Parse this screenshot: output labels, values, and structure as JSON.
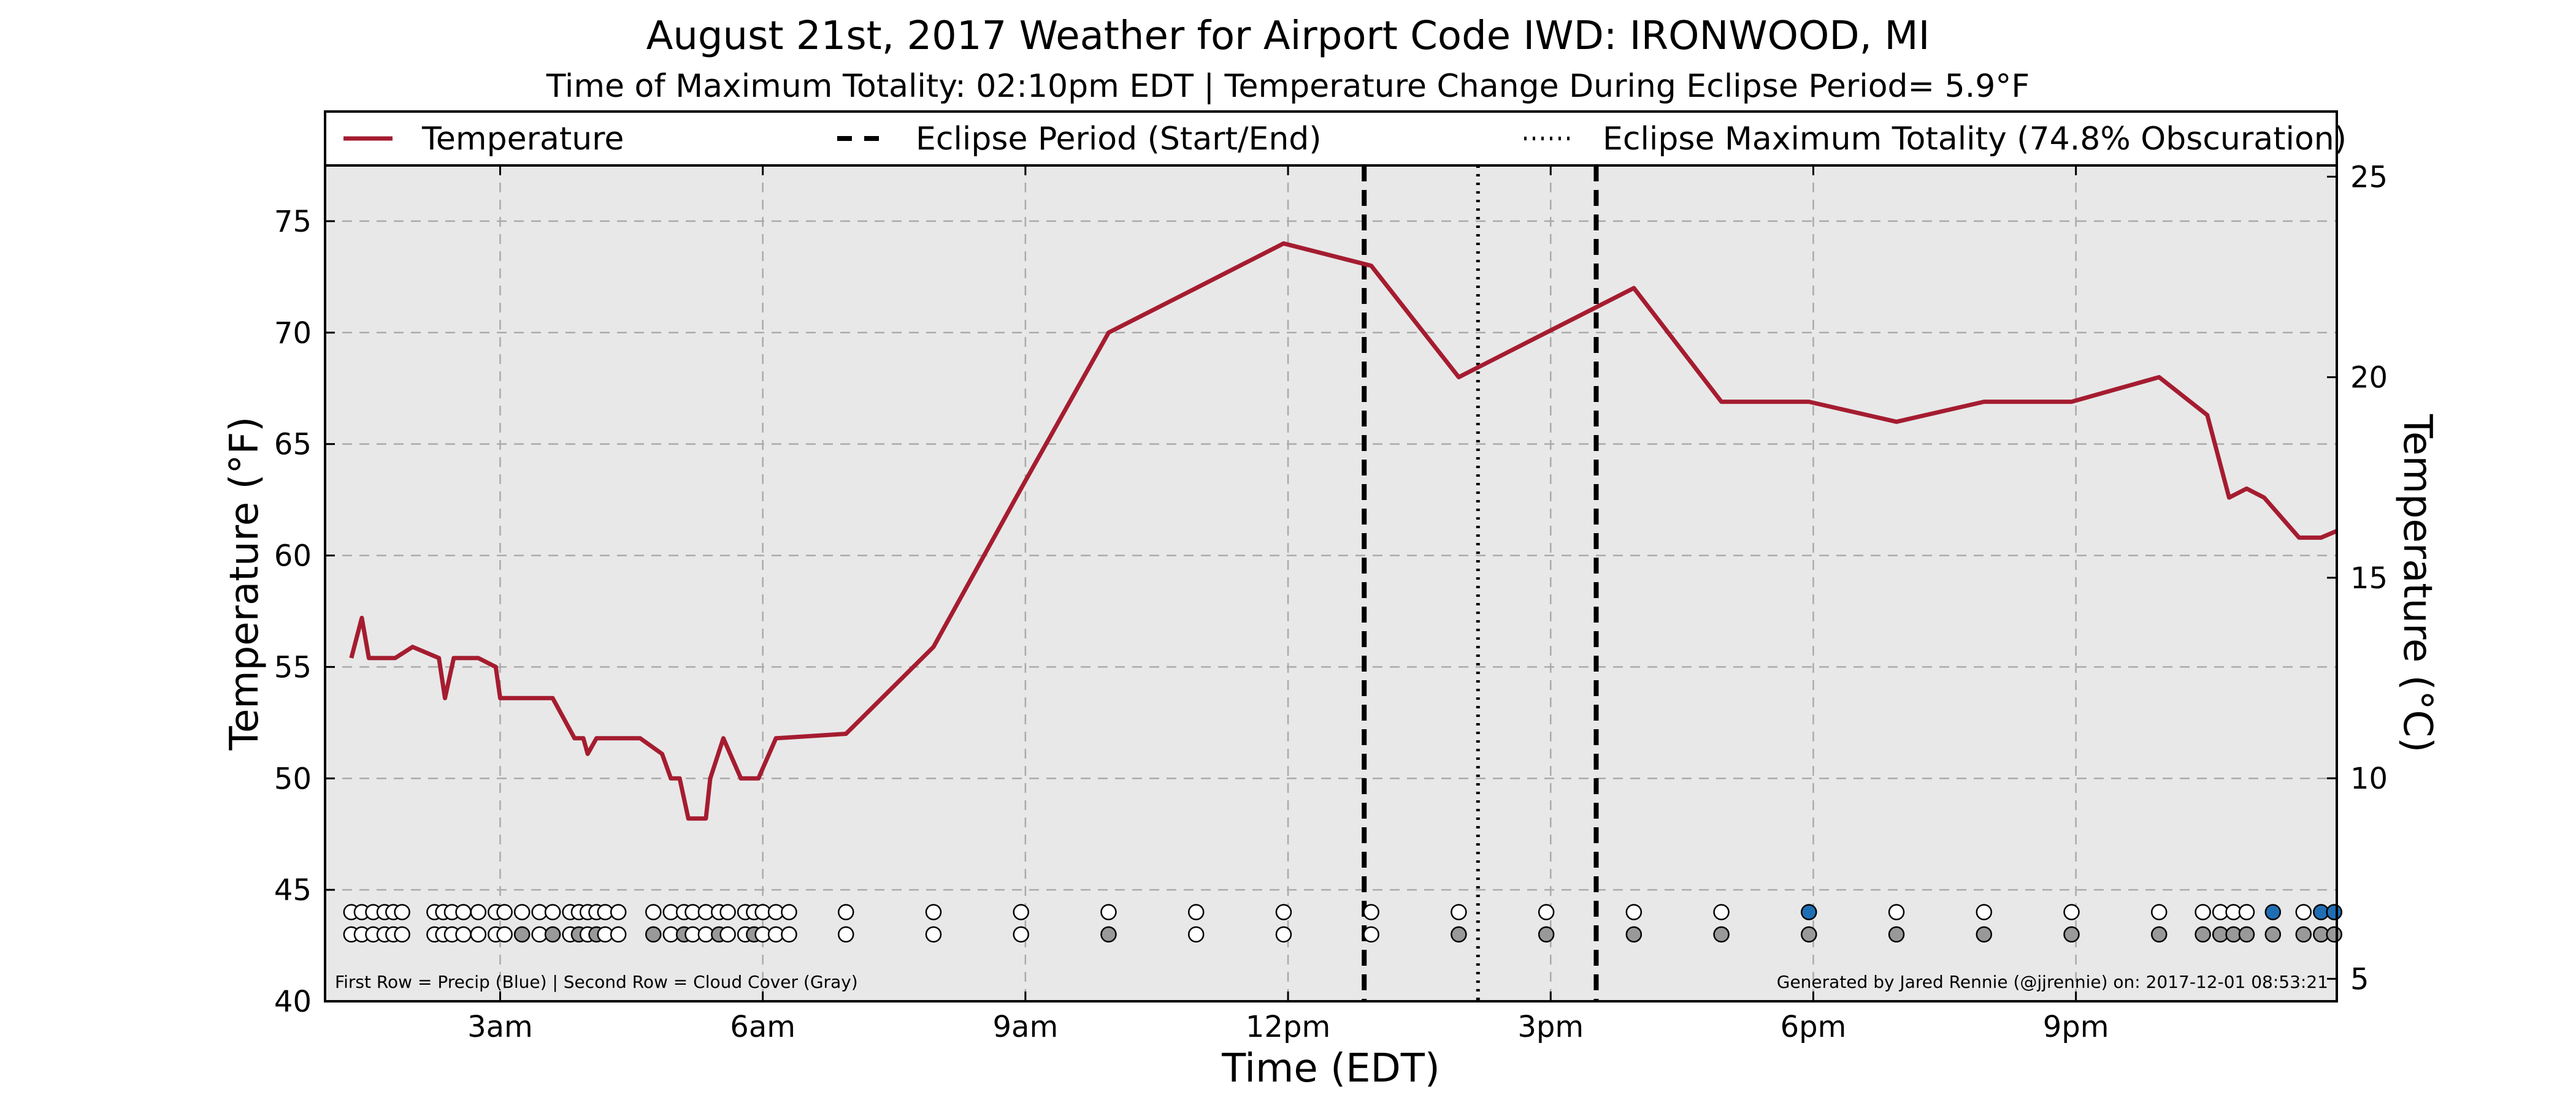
{
  "chart_data": {
    "type": "line",
    "title": "August 21st, 2017 Weather for Airport Code IWD: IRONWOOD, MI",
    "subtitle": "Time of Maximum Totality: 02:10pm EDT | Temperature Change During Eclipse Period= 5.9°F",
    "xlabel": "Time (EDT)",
    "ylabel": "Temperature (°F)",
    "y2label": "Temperature (°C)",
    "xlim": [
      1.0,
      23.98
    ],
    "ylim": [
      40,
      77.5
    ],
    "y2lim": [
      4.44,
      25.28
    ],
    "grid": true,
    "legend_position": "top",
    "x_ticks": [
      {
        "value": 3,
        "label": "3am"
      },
      {
        "value": 6,
        "label": "6am"
      },
      {
        "value": 9,
        "label": "9am"
      },
      {
        "value": 12,
        "label": "12pm"
      },
      {
        "value": 15,
        "label": "3pm"
      },
      {
        "value": 18,
        "label": "6pm"
      },
      {
        "value": 21,
        "label": "9pm"
      }
    ],
    "y_ticks": [
      40,
      45,
      50,
      55,
      60,
      65,
      70,
      75
    ],
    "y2_ticks": [
      5,
      10,
      15,
      20,
      25
    ],
    "legend": [
      {
        "label": "Temperature",
        "style": "solid"
      },
      {
        "label": "Eclipse Period (Start/End)",
        "style": "dashed"
      },
      {
        "label": "Eclipse Maximum Totality (74.8% Obscuration)",
        "style": "dotted"
      }
    ],
    "series": [
      {
        "name": "Temperature",
        "color": "#a51c30",
        "points": [
          [
            1.3,
            55.4
          ],
          [
            1.42,
            57.2
          ],
          [
            1.5,
            55.4
          ],
          [
            1.8,
            55.4
          ],
          [
            2.0,
            55.9
          ],
          [
            2.3,
            55.4
          ],
          [
            2.37,
            53.6
          ],
          [
            2.47,
            55.4
          ],
          [
            2.75,
            55.4
          ],
          [
            2.95,
            55.0
          ],
          [
            3.0,
            53.6
          ],
          [
            3.6,
            53.6
          ],
          [
            3.85,
            51.8
          ],
          [
            3.95,
            51.8
          ],
          [
            4.0,
            51.1
          ],
          [
            4.1,
            51.8
          ],
          [
            4.6,
            51.8
          ],
          [
            4.85,
            51.1
          ],
          [
            4.95,
            50.0
          ],
          [
            5.05,
            50.0
          ],
          [
            5.15,
            48.2
          ],
          [
            5.35,
            48.2
          ],
          [
            5.4,
            50.0
          ],
          [
            5.55,
            51.8
          ],
          [
            5.75,
            50.0
          ],
          [
            5.95,
            50.0
          ],
          [
            6.15,
            51.8
          ],
          [
            6.95,
            52.0
          ],
          [
            7.95,
            55.9
          ],
          [
            8.95,
            63.0
          ],
          [
            9.95,
            70.0
          ],
          [
            10.95,
            72.0
          ],
          [
            11.95,
            74.0
          ],
          [
            12.95,
            73.0
          ],
          [
            13.95,
            68.0
          ],
          [
            14.95,
            70.0
          ],
          [
            15.95,
            72.0
          ],
          [
            16.95,
            66.9
          ],
          [
            17.95,
            66.9
          ],
          [
            18.95,
            66.0
          ],
          [
            19.95,
            66.9
          ],
          [
            20.95,
            66.9
          ],
          [
            21.95,
            68.0
          ],
          [
            22.5,
            66.3
          ],
          [
            22.75,
            62.6
          ],
          [
            22.95,
            63.0
          ],
          [
            23.15,
            62.6
          ],
          [
            23.55,
            60.8
          ],
          [
            23.8,
            60.8
          ],
          [
            23.98,
            61.1
          ]
        ]
      }
    ],
    "eclipse_start": 12.87,
    "eclipse_end": 15.52,
    "eclipse_max": 14.17,
    "precip_row": {
      "y": 44.0,
      "x": [
        1.3,
        1.42,
        1.55,
        1.68,
        1.78,
        1.88,
        2.25,
        2.35,
        2.45,
        2.58,
        2.75,
        2.95,
        3.05,
        3.25,
        3.45,
        3.6,
        3.8,
        3.9,
        4.0,
        4.1,
        4.2,
        4.35,
        4.75,
        4.95,
        5.1,
        5.2,
        5.35,
        5.5,
        5.6,
        5.8,
        5.9,
        6.0,
        6.15,
        6.3,
        6.95,
        7.95,
        8.95,
        9.95,
        10.95,
        11.95,
        12.95,
        13.95,
        14.95,
        15.95,
        16.95,
        17.95,
        18.95,
        19.95,
        20.95,
        21.95,
        22.45,
        22.65,
        22.8,
        22.95,
        23.25,
        23.6,
        23.8,
        23.95
      ],
      "state": [
        "none",
        "none",
        "none",
        "none",
        "none",
        "none",
        "none",
        "none",
        "none",
        "none",
        "none",
        "none",
        "none",
        "none",
        "none",
        "none",
        "none",
        "none",
        "none",
        "none",
        "none",
        "none",
        "none",
        "none",
        "none",
        "none",
        "none",
        "none",
        "none",
        "none",
        "none",
        "none",
        "none",
        "none",
        "none",
        "none",
        "none",
        "none",
        "none",
        "none",
        "none",
        "none",
        "none",
        "none",
        "none",
        "precip",
        "none",
        "none",
        "none",
        "none",
        "none",
        "none",
        "none",
        "none",
        "precip",
        "none",
        "precip",
        "precip",
        "precip"
      ]
    },
    "cloud_row": {
      "y": 43.0,
      "x": [
        1.3,
        1.42,
        1.55,
        1.68,
        1.78,
        1.88,
        2.25,
        2.35,
        2.45,
        2.58,
        2.75,
        2.95,
        3.05,
        3.25,
        3.45,
        3.6,
        3.8,
        3.9,
        4.0,
        4.1,
        4.2,
        4.35,
        4.75,
        4.95,
        5.1,
        5.2,
        5.35,
        5.5,
        5.6,
        5.8,
        5.9,
        6.0,
        6.15,
        6.3,
        6.95,
        7.95,
        8.95,
        9.95,
        10.95,
        11.95,
        12.95,
        13.95,
        14.95,
        15.95,
        16.95,
        17.95,
        18.95,
        19.95,
        20.95,
        21.95,
        22.45,
        22.65,
        22.8,
        22.95,
        23.25,
        23.6,
        23.8,
        23.95
      ],
      "state": [
        "clear",
        "clear",
        "clear",
        "clear",
        "clear",
        "clear",
        "clear",
        "clear",
        "clear",
        "clear",
        "clear",
        "clear",
        "clear",
        "cloud",
        "clear",
        "cloud",
        "clear",
        "cloud",
        "clear",
        "cloud",
        "clear",
        "clear",
        "cloud",
        "clear",
        "cloud",
        "clear",
        "clear",
        "cloud",
        "clear",
        "clear",
        "cloud",
        "clear",
        "clear",
        "clear",
        "clear",
        "clear",
        "clear",
        "cloud",
        "clear",
        "clear",
        "clear",
        "cloud",
        "cloud",
        "cloud",
        "cloud",
        "cloud",
        "cloud",
        "cloud",
        "cloud",
        "cloud",
        "cloud",
        "cloud",
        "cloud",
        "cloud",
        "cloud",
        "cloud",
        "cloud",
        "cloud"
      ]
    },
    "colors": {
      "plot_background": "#e8e8e8",
      "temperature_line": "#a51c30",
      "precip": "#1f6eb4",
      "cloud": "#999999",
      "empty_marker": "#ffffff"
    },
    "note_left": "First Row = Precip (Blue) | Second Row = Cloud Cover (Gray)",
    "note_right": "Generated by Jared Rennie (@jjrennie) on: 2017-12-01 08:53:21"
  }
}
